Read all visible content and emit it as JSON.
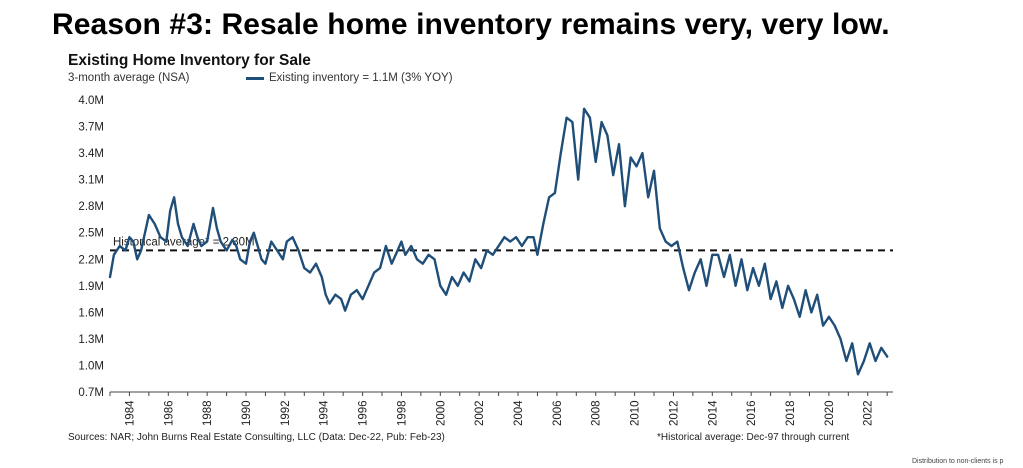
{
  "headline": "Reason #3: Resale home inventory remains very, very low.",
  "chart_data": {
    "type": "line",
    "title": "Existing Home Inventory for Sale",
    "subtitle": "3-month average (NSA)",
    "xlabel": "",
    "ylabel": "",
    "xlim": [
      1983,
      2023.3
    ],
    "ylim": [
      0.7,
      4.0
    ],
    "y_ticks": [
      0.7,
      1.0,
      1.3,
      1.6,
      1.9,
      2.2,
      2.5,
      2.8,
      3.1,
      3.4,
      3.7,
      4.0
    ],
    "y_tick_labels": [
      "0.7M",
      "1.0M",
      "1.3M",
      "1.6M",
      "1.9M",
      "2.2M",
      "2.5M",
      "2.8M",
      "3.1M",
      "3.4M",
      "3.7M",
      "4.0M"
    ],
    "x_tick_labels": [
      "1984",
      "1986",
      "1988",
      "1990",
      "1992",
      "1994",
      "1996",
      "1998",
      "2000",
      "2002",
      "2004",
      "2006",
      "2008",
      "2010",
      "2012",
      "2014",
      "2016",
      "2018",
      "2020",
      "2022"
    ],
    "series": [
      {
        "name": "Existing inventory = 1.1M (3% YOY)",
        "color": "#1f4e79",
        "x": [
          1983.0,
          1983.2,
          1983.5,
          1983.8,
          1984.0,
          1984.2,
          1984.4,
          1984.6,
          1984.8,
          1985.0,
          1985.3,
          1985.6,
          1985.9,
          1986.1,
          1986.3,
          1986.5,
          1986.7,
          1987.0,
          1987.3,
          1987.5,
          1987.7,
          1988.0,
          1988.3,
          1988.5,
          1988.7,
          1989.0,
          1989.3,
          1989.5,
          1989.7,
          1990.0,
          1990.2,
          1990.4,
          1990.6,
          1990.8,
          1991.0,
          1991.3,
          1991.6,
          1991.9,
          1992.1,
          1992.4,
          1992.7,
          1993.0,
          1993.3,
          1993.6,
          1993.9,
          1994.1,
          1994.3,
          1994.6,
          1994.9,
          1995.1,
          1995.4,
          1995.7,
          1996.0,
          1996.3,
          1996.6,
          1996.9,
          1997.2,
          1997.5,
          1997.8,
          1998.0,
          1998.2,
          1998.5,
          1998.8,
          1999.1,
          1999.4,
          1999.7,
          2000.0,
          2000.3,
          2000.6,
          2000.9,
          2001.2,
          2001.5,
          2001.8,
          2002.1,
          2002.4,
          2002.7,
          2003.0,
          2003.3,
          2003.6,
          2003.9,
          2004.2,
          2004.5,
          2004.8,
          2005.0,
          2005.3,
          2005.6,
          2005.9,
          2006.2,
          2006.5,
          2006.8,
          2007.1,
          2007.4,
          2007.7,
          2008.0,
          2008.3,
          2008.6,
          2008.9,
          2009.2,
          2009.5,
          2009.8,
          2010.1,
          2010.4,
          2010.7,
          2011.0,
          2011.3,
          2011.6,
          2011.9,
          2012.2,
          2012.5,
          2012.8,
          2013.1,
          2013.4,
          2013.7,
          2014.0,
          2014.3,
          2014.6,
          2014.9,
          2015.2,
          2015.5,
          2015.8,
          2016.1,
          2016.4,
          2016.7,
          2017.0,
          2017.3,
          2017.6,
          2017.9,
          2018.2,
          2018.5,
          2018.8,
          2019.1,
          2019.4,
          2019.7,
          2020.0,
          2020.3,
          2020.6,
          2020.9,
          2021.2,
          2021.5,
          2021.8,
          2022.1,
          2022.4,
          2022.7,
          2023.0
        ],
        "values": [
          2.0,
          2.25,
          2.35,
          2.3,
          2.45,
          2.4,
          2.2,
          2.3,
          2.5,
          2.7,
          2.6,
          2.45,
          2.4,
          2.75,
          2.9,
          2.6,
          2.45,
          2.35,
          2.6,
          2.45,
          2.35,
          2.4,
          2.78,
          2.55,
          2.4,
          2.3,
          2.42,
          2.35,
          2.2,
          2.15,
          2.4,
          2.5,
          2.35,
          2.2,
          2.15,
          2.4,
          2.3,
          2.2,
          2.4,
          2.45,
          2.3,
          2.1,
          2.05,
          2.15,
          2.0,
          1.8,
          1.7,
          1.8,
          1.75,
          1.62,
          1.8,
          1.85,
          1.75,
          1.9,
          2.05,
          2.1,
          2.35,
          2.15,
          2.3,
          2.4,
          2.25,
          2.35,
          2.2,
          2.15,
          2.25,
          2.2,
          1.9,
          1.8,
          2.0,
          1.9,
          2.05,
          1.95,
          2.2,
          2.1,
          2.3,
          2.25,
          2.35,
          2.45,
          2.4,
          2.45,
          2.35,
          2.45,
          2.45,
          2.25,
          2.6,
          2.9,
          2.95,
          3.4,
          3.8,
          3.75,
          3.1,
          3.9,
          3.8,
          3.3,
          3.75,
          3.6,
          3.15,
          3.5,
          2.8,
          3.35,
          3.25,
          3.4,
          2.9,
          3.2,
          2.55,
          2.4,
          2.35,
          2.4,
          2.1,
          1.85,
          2.05,
          2.2,
          1.9,
          2.25,
          2.25,
          2.0,
          2.25,
          1.9,
          2.2,
          1.85,
          2.1,
          1.9,
          2.15,
          1.75,
          1.95,
          1.65,
          1.9,
          1.75,
          1.55,
          1.85,
          1.6,
          1.8,
          1.45,
          1.55,
          1.45,
          1.3,
          1.05,
          1.25,
          0.9,
          1.05,
          1.25,
          1.05,
          1.2,
          1.1
        ]
      }
    ],
    "reference_line": {
      "label": "Historical average* = 2.30M",
      "value": 2.3
    },
    "legend": "top",
    "grid": false
  },
  "sources": "Sources: NAR; John Burns Real Estate Consulting, LLC (Data: Dec-22, Pub: Feb-23)",
  "footnote": "*Historical average: Dec-97 through current",
  "disclaimer": "Distribution to non-clients is p"
}
